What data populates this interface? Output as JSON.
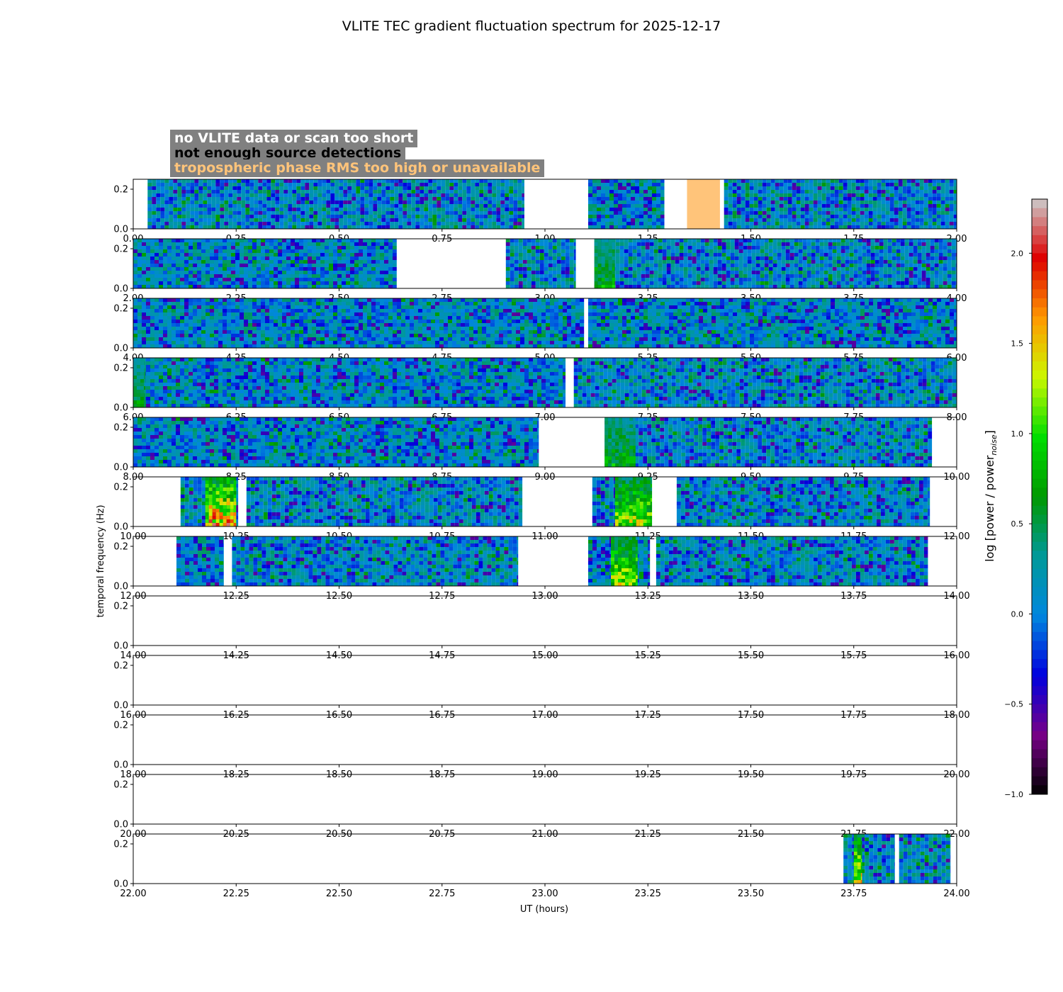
{
  "chart_data": {
    "type": "heatmap",
    "title": "VLITE TEC gradient fluctuation spectrum for 2025-12-17",
    "xlabel": "UT (hours)",
    "ylabel": "temporal frequency (Hz)",
    "colorbar_label": "log [power / power",
    "colorbar_label_sub": "noise",
    "colorbar_label_end": "]",
    "colorbar_range": [
      -1.0,
      2.3
    ],
    "colorbar_ticks": [
      "2.0",
      "1.5",
      "1.0",
      "0.5",
      "0.0",
      "−0.5",
      "−1.0"
    ],
    "colorbar_tick_values": [
      2.0,
      1.5,
      1.0,
      0.5,
      0.0,
      -0.5,
      -1.0
    ],
    "y_range": [
      0.0,
      0.25
    ],
    "y_ticks": [
      "0.2",
      "0.0"
    ],
    "y_tick_values": [
      0.2,
      0.0
    ],
    "legend": [
      {
        "label": "no VLITE data or scan too short",
        "color": "#ffffff"
      },
      {
        "label": "not enough source detections",
        "color": "#000000"
      },
      {
        "label": "tropospheric phase RMS too high or unavailable",
        "color": "#ffc47a"
      }
    ],
    "panels": [
      {
        "x_range": [
          0,
          2
        ],
        "x_ticks": [
          "0.00",
          "0.25",
          "0.50",
          "0.75",
          "1.00",
          "1.25",
          "1.50",
          "1.75",
          "2.00"
        ],
        "segments": [
          [
            0.035,
            0.95
          ],
          [
            1.105,
            1.29
          ]
        ],
        "flagged": [
          [
            1.345,
            1.425
          ]
        ],
        "seg2": [
          [
            1.435,
            2.0
          ]
        ],
        "hot": []
      },
      {
        "x_range": [
          2,
          4
        ],
        "x_ticks": [
          "2.00",
          "2.25",
          "2.50",
          "2.75",
          "3.00",
          "3.25",
          "3.50",
          "3.75",
          "4.00"
        ],
        "segments": [
          [
            2.0,
            2.64
          ],
          [
            2.905,
            3.075
          ],
          [
            3.12,
            4.0
          ]
        ],
        "flagged": [],
        "hot": [
          [
            3.12,
            3.17,
            0.9
          ]
        ]
      },
      {
        "x_range": [
          4,
          6
        ],
        "x_ticks": [
          "4.00",
          "4.25",
          "4.50",
          "4.75",
          "5.00",
          "5.25",
          "5.50",
          "5.75",
          "6.00"
        ],
        "segments": [
          [
            4.0,
            5.095
          ],
          [
            5.105,
            6.0
          ]
        ],
        "flagged": [],
        "hot": []
      },
      {
        "x_range": [
          6,
          8
        ],
        "x_ticks": [
          "6.00",
          "6.25",
          "6.50",
          "6.75",
          "7.00",
          "7.25",
          "7.50",
          "7.75",
          "8.00"
        ],
        "segments": [
          [
            6.0,
            7.05
          ],
          [
            7.07,
            8.0
          ]
        ],
        "flagged": [],
        "hot": [
          [
            6.0,
            6.03,
            0.75
          ]
        ]
      },
      {
        "x_range": [
          8,
          10
        ],
        "x_ticks": [
          "8.00",
          "8.25",
          "8.50",
          "8.75",
          "9.00",
          "9.25",
          "9.50",
          "9.75",
          "10.00"
        ],
        "segments": [
          [
            8.0,
            8.985
          ],
          [
            9.145,
            9.94
          ]
        ],
        "flagged": [],
        "hot": [
          [
            9.145,
            9.22,
            0.9
          ]
        ]
      },
      {
        "x_range": [
          10,
          12
        ],
        "x_ticks": [
          "10.00",
          "10.25",
          "10.50",
          "10.75",
          "11.00",
          "11.25",
          "11.50",
          "11.75",
          "12.00"
        ],
        "segments": [
          [
            10.115,
            10.255
          ],
          [
            10.275,
            10.945
          ],
          [
            11.115,
            11.26
          ],
          [
            11.32,
            11.935
          ]
        ],
        "flagged": [],
        "hot": [
          [
            10.175,
            10.25,
            1.9
          ],
          [
            11.17,
            11.26,
            1.4
          ]
        ]
      },
      {
        "x_range": [
          12,
          14
        ],
        "x_ticks": [
          "12.00",
          "12.25",
          "12.50",
          "12.75",
          "13.00",
          "13.25",
          "13.50",
          "13.75",
          "14.00"
        ],
        "segments": [
          [
            12.105,
            12.22
          ],
          [
            12.24,
            12.935
          ],
          [
            13.105,
            13.255
          ],
          [
            13.27,
            13.93
          ]
        ],
        "flagged": [],
        "hot": [
          [
            13.16,
            13.225,
            1.4
          ]
        ]
      },
      {
        "x_range": [
          14,
          16
        ],
        "x_ticks": [
          "14.00",
          "14.25",
          "14.50",
          "14.75",
          "15.00",
          "15.25",
          "15.50",
          "15.75",
          "16.00"
        ],
        "segments": [],
        "flagged": [],
        "hot": []
      },
      {
        "x_range": [
          16,
          18
        ],
        "x_ticks": [
          "16.00",
          "16.25",
          "16.50",
          "16.75",
          "17.00",
          "17.25",
          "17.50",
          "17.75",
          "18.00"
        ],
        "segments": [],
        "flagged": [],
        "hot": []
      },
      {
        "x_range": [
          18,
          20
        ],
        "x_ticks": [
          "18.00",
          "18.25",
          "18.50",
          "18.75",
          "19.00",
          "19.25",
          "19.50",
          "19.75",
          "20.00"
        ],
        "segments": [],
        "flagged": [],
        "hot": []
      },
      {
        "x_range": [
          20,
          22
        ],
        "x_ticks": [
          "20.00",
          "20.25",
          "20.50",
          "20.75",
          "21.00",
          "21.25",
          "21.50",
          "21.75",
          "22.00"
        ],
        "segments": [],
        "flagged": [],
        "hot": []
      },
      {
        "x_range": [
          22,
          24
        ],
        "x_ticks": [
          "22.00",
          "22.25",
          "22.50",
          "22.75",
          "23.00",
          "23.25",
          "23.50",
          "23.75",
          "24.00"
        ],
        "segments": [
          [
            23.725,
            23.85
          ],
          [
            23.86,
            23.985
          ]
        ],
        "flagged": [],
        "hot": [
          [
            23.75,
            23.77,
            1.6
          ]
        ]
      }
    ]
  }
}
